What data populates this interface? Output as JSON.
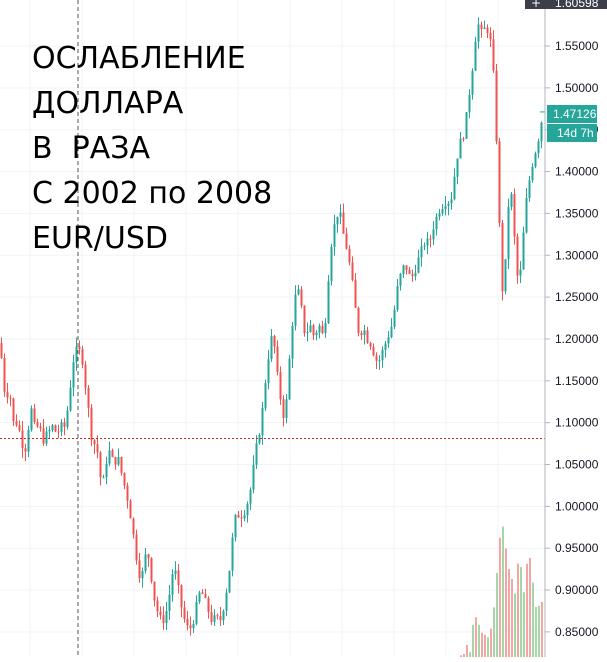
{
  "annotation": {
    "lines": [
      "ОСЛАБЛЕНИЕ",
      "ДОЛЛАРА",
      "В  РАЗА",
      "С 2002 по 2008",
      "EUR/USD"
    ]
  },
  "price_scale": {
    "crosshair_price": "1.60598",
    "crosshair_icon": "plus-icon",
    "last_price": "1.47126",
    "countdown": "14d 7h"
  },
  "colors": {
    "up": "#26a69a",
    "down": "#ef5350",
    "up_volume": "#a5d6a7",
    "down_volume": "#f3a7a4",
    "last_price_badge": "#26a69a",
    "countdown_badge": "#26a69a",
    "crosshair_badge": "#3b3f4a",
    "grid": "#f0f3fa",
    "horizontal_line": "#c62828"
  },
  "chart_data": {
    "type": "candlestick",
    "symbol": "EUR/USD",
    "period": "2002-2008",
    "y_range": [
      0.82,
      1.605
    ],
    "y_ticks": [
      "1.55000",
      "1.50000",
      "1.45000",
      "1.40000",
      "1.35000",
      "1.30000",
      "1.25000",
      "1.20000",
      "1.15000",
      "1.10000",
      "1.05000",
      "1.00000",
      "0.95000",
      "0.90000",
      "0.85000"
    ],
    "horizontal_line_price": 1.081,
    "crosshair_price": 1.60598,
    "last_price": 1.47126,
    "grid": true,
    "close_path": [
      [
        0,
        1.195
      ],
      [
        3,
        1.16
      ],
      [
        6,
        1.12
      ],
      [
        9,
        1.15
      ],
      [
        12,
        1.11
      ],
      [
        15,
        1.09
      ],
      [
        18,
        1.11
      ],
      [
        21,
        1.07
      ],
      [
        24,
        1.08
      ],
      [
        27,
        1.06
      ],
      [
        30,
        1.13
      ],
      [
        33,
        1.1
      ],
      [
        36,
        1.09
      ],
      [
        39,
        1.1
      ],
      [
        42,
        1.08
      ],
      [
        45,
        1.08
      ],
      [
        48,
        1.09
      ],
      [
        51,
        1.09
      ],
      [
        54,
        1.1
      ],
      [
        57,
        1.08
      ],
      [
        60,
        1.1
      ],
      [
        63,
        1.09
      ],
      [
        66,
        1.1
      ],
      [
        69,
        1.13
      ],
      [
        72,
        1.16
      ],
      [
        75,
        1.19
      ],
      [
        78,
        1.18
      ],
      [
        81,
        1.19
      ],
      [
        84,
        1.16
      ],
      [
        87,
        1.13
      ],
      [
        90,
        1.1
      ],
      [
        93,
        1.07
      ],
      [
        96,
        1.08
      ],
      [
        99,
        1.05
      ],
      [
        102,
        1.02
      ],
      [
        105,
        1.04
      ],
      [
        108,
        1.07
      ],
      [
        111,
        1.06
      ],
      [
        114,
        1.05
      ],
      [
        117,
        1.06
      ],
      [
        120,
        1.05
      ],
      [
        123,
        1.03
      ],
      [
        126,
        1.02
      ],
      [
        129,
        1.0
      ],
      [
        132,
        0.98
      ],
      [
        135,
        0.95
      ],
      [
        138,
        0.93
      ],
      [
        141,
        0.91
      ],
      [
        144,
        0.93
      ],
      [
        147,
        0.95
      ],
      [
        150,
        0.93
      ],
      [
        153,
        0.9
      ],
      [
        156,
        0.88
      ],
      [
        159,
        0.87
      ],
      [
        162,
        0.86
      ],
      [
        165,
        0.87
      ],
      [
        168,
        0.88
      ],
      [
        171,
        0.91
      ],
      [
        174,
        0.93
      ],
      [
        177,
        0.91
      ],
      [
        180,
        0.89
      ],
      [
        183,
        0.87
      ],
      [
        186,
        0.86
      ],
      [
        189,
        0.85
      ],
      [
        192,
        0.86
      ],
      [
        195,
        0.87
      ],
      [
        198,
        0.89
      ],
      [
        201,
        0.9
      ],
      [
        204,
        0.89
      ],
      [
        207,
        0.88
      ],
      [
        210,
        0.87
      ],
      [
        213,
        0.86
      ],
      [
        216,
        0.87
      ],
      [
        219,
        0.86
      ],
      [
        222,
        0.87
      ],
      [
        225,
        0.89
      ],
      [
        228,
        0.91
      ],
      [
        231,
        0.94
      ],
      [
        234,
        0.98
      ],
      [
        237,
        0.99
      ],
      [
        240,
        0.99
      ],
      [
        243,
        0.99
      ],
      [
        246,
        1.0
      ],
      [
        249,
        1.01
      ],
      [
        252,
        1.03
      ],
      [
        255,
        1.06
      ],
      [
        258,
        1.08
      ],
      [
        261,
        1.1
      ],
      [
        264,
        1.13
      ],
      [
        267,
        1.17
      ],
      [
        270,
        1.19
      ],
      [
        273,
        1.21
      ],
      [
        276,
        1.17
      ],
      [
        279,
        1.14
      ],
      [
        282,
        1.12
      ],
      [
        285,
        1.1
      ],
      [
        288,
        1.15
      ],
      [
        291,
        1.2
      ],
      [
        294,
        1.24
      ],
      [
        297,
        1.26
      ],
      [
        300,
        1.25
      ],
      [
        303,
        1.22
      ],
      [
        306,
        1.2
      ],
      [
        309,
        1.22
      ],
      [
        312,
        1.21
      ],
      [
        315,
        1.2
      ],
      [
        318,
        1.22
      ],
      [
        321,
        1.21
      ],
      [
        324,
        1.2
      ],
      [
        327,
        1.25
      ],
      [
        330,
        1.3
      ],
      [
        333,
        1.33
      ],
      [
        336,
        1.34
      ],
      [
        339,
        1.36
      ],
      [
        342,
        1.33
      ],
      [
        345,
        1.32
      ],
      [
        348,
        1.3
      ],
      [
        351,
        1.28
      ],
      [
        354,
        1.25
      ],
      [
        357,
        1.22
      ],
      [
        360,
        1.2
      ],
      [
        363,
        1.22
      ],
      [
        366,
        1.2
      ],
      [
        369,
        1.2
      ],
      [
        372,
        1.19
      ],
      [
        375,
        1.18
      ],
      [
        378,
        1.17
      ],
      [
        381,
        1.18
      ],
      [
        384,
        1.19
      ],
      [
        387,
        1.2
      ],
      [
        390,
        1.21
      ],
      [
        393,
        1.22
      ],
      [
        396,
        1.25
      ],
      [
        399,
        1.27
      ],
      [
        402,
        1.28
      ],
      [
        405,
        1.29
      ],
      [
        408,
        1.28
      ],
      [
        411,
        1.27
      ],
      [
        414,
        1.28
      ],
      [
        417,
        1.29
      ],
      [
        420,
        1.3
      ],
      [
        423,
        1.31
      ],
      [
        426,
        1.32
      ],
      [
        429,
        1.31
      ],
      [
        432,
        1.33
      ],
      [
        435,
        1.34
      ],
      [
        438,
        1.35
      ],
      [
        441,
        1.36
      ],
      [
        444,
        1.36
      ],
      [
        447,
        1.37
      ],
      [
        450,
        1.36
      ],
      [
        453,
        1.38
      ],
      [
        456,
        1.41
      ],
      [
        459,
        1.43
      ],
      [
        462,
        1.44
      ],
      [
        465,
        1.45
      ],
      [
        468,
        1.48
      ],
      [
        471,
        1.51
      ],
      [
        474,
        1.54
      ],
      [
        477,
        1.58
      ],
      [
        480,
        1.57
      ],
      [
        483,
        1.56
      ],
      [
        486,
        1.58
      ],
      [
        489,
        1.56
      ],
      [
        492,
        1.55
      ],
      [
        495,
        1.48
      ],
      [
        498,
        1.4
      ],
      [
        501,
        1.27
      ],
      [
        504,
        1.25
      ],
      [
        507,
        1.33
      ],
      [
        510,
        1.39
      ],
      [
        513,
        1.35
      ],
      [
        516,
        1.29
      ],
      [
        519,
        1.26
      ],
      [
        522,
        1.3
      ],
      [
        525,
        1.35
      ],
      [
        528,
        1.38
      ],
      [
        531,
        1.4
      ],
      [
        534,
        1.42
      ],
      [
        537,
        1.43
      ],
      [
        540,
        1.45
      ],
      [
        543,
        1.47126
      ]
    ],
    "volume_path": [
      [
        455,
        0.82
      ],
      [
        460,
        0.83
      ],
      [
        465,
        0.84
      ],
      [
        470,
        0.84
      ],
      [
        475,
        0.88
      ],
      [
        480,
        0.87
      ],
      [
        485,
        0.85
      ],
      [
        490,
        0.86
      ],
      [
        495,
        0.89
      ],
      [
        500,
        0.97
      ],
      [
        503,
        0.98
      ],
      [
        506,
        0.95
      ],
      [
        509,
        0.93
      ],
      [
        512,
        0.92
      ],
      [
        515,
        0.91
      ],
      [
        518,
        0.94
      ],
      [
        521,
        0.93
      ],
      [
        524,
        0.9
      ],
      [
        527,
        0.94
      ],
      [
        530,
        0.95
      ],
      [
        533,
        0.91
      ],
      [
        536,
        0.89
      ],
      [
        539,
        0.89
      ],
      [
        542,
        0.9
      ]
    ]
  }
}
